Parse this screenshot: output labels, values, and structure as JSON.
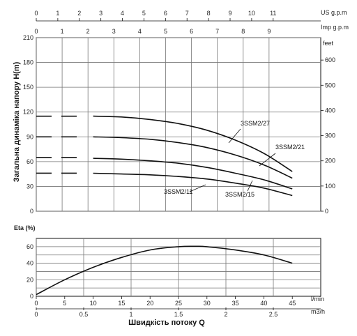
{
  "chart_data": [
    {
      "type": "line",
      "ylabel": "Загальна динаміка напору H(m)",
      "ylim": [
        0,
        210
      ],
      "yticks": [
        0,
        30,
        60,
        90,
        120,
        150,
        180,
        210
      ],
      "y2label": "feet",
      "y2ticks": [
        0,
        100,
        200,
        300,
        400,
        500,
        600
      ],
      "top_axes": [
        {
          "label": "US g.p.m",
          "ticks": [
            "0",
            "1",
            "2",
            "3",
            "4",
            "5",
            "6",
            "7",
            "8",
            "9",
            "10",
            "11"
          ]
        },
        {
          "label": "Imp g.p.m",
          "ticks": [
            "0",
            "1",
            "2",
            "3",
            "4",
            "5",
            "6",
            "7",
            "8",
            "9"
          ]
        }
      ],
      "xlim": [
        0,
        50
      ],
      "grid": true,
      "series": [
        {
          "name": "3SSM2/27",
          "x": [
            0,
            10,
            15,
            20,
            25,
            30,
            35,
            40,
            45
          ],
          "y": [
            115,
            115,
            114,
            111,
            106,
            98,
            86,
            70,
            48
          ],
          "dashed_until": 8
        },
        {
          "name": "3SSM2/21",
          "x": [
            0,
            10,
            15,
            20,
            25,
            30,
            35,
            40,
            45
          ],
          "y": [
            90,
            90,
            89,
            87,
            83,
            77,
            68,
            56,
            40
          ],
          "dashed_until": 8
        },
        {
          "name": "3SSM2/15",
          "x": [
            0,
            10,
            15,
            20,
            25,
            30,
            35,
            40,
            45
          ],
          "y": [
            65,
            64,
            63,
            61,
            58,
            53,
            46,
            38,
            27
          ],
          "dashed_until": 8
        },
        {
          "name": "3SSM2/11",
          "x": [
            0,
            10,
            15,
            20,
            25,
            30,
            35,
            40,
            45
          ],
          "y": [
            46,
            46,
            45,
            44,
            42,
            39,
            34,
            28,
            19
          ],
          "dashed_until": 8
        }
      ]
    },
    {
      "type": "line",
      "ylabel": "Eta (%)",
      "ylim": [
        0,
        70
      ],
      "yticks": [
        0,
        20,
        40,
        60
      ],
      "xlim": [
        0,
        50
      ],
      "xticks": [
        "0",
        "5",
        "10",
        "15",
        "20",
        "25",
        "30",
        "35",
        "40",
        "45"
      ],
      "xlabel_unit": "l/min",
      "x2ticks": [
        "0",
        "0.5",
        "1",
        "1.5",
        "2",
        "2.5"
      ],
      "x2label_unit": "m3/h",
      "xlabel": "Швидкість потоку Q",
      "grid": true,
      "series": [
        {
          "name": "Eta",
          "x": [
            0,
            5,
            10,
            15,
            20,
            25,
            28,
            30,
            35,
            40,
            45
          ],
          "y": [
            2,
            20,
            35,
            47,
            56,
            60,
            60.5,
            60,
            56,
            50,
            40
          ]
        }
      ]
    }
  ]
}
